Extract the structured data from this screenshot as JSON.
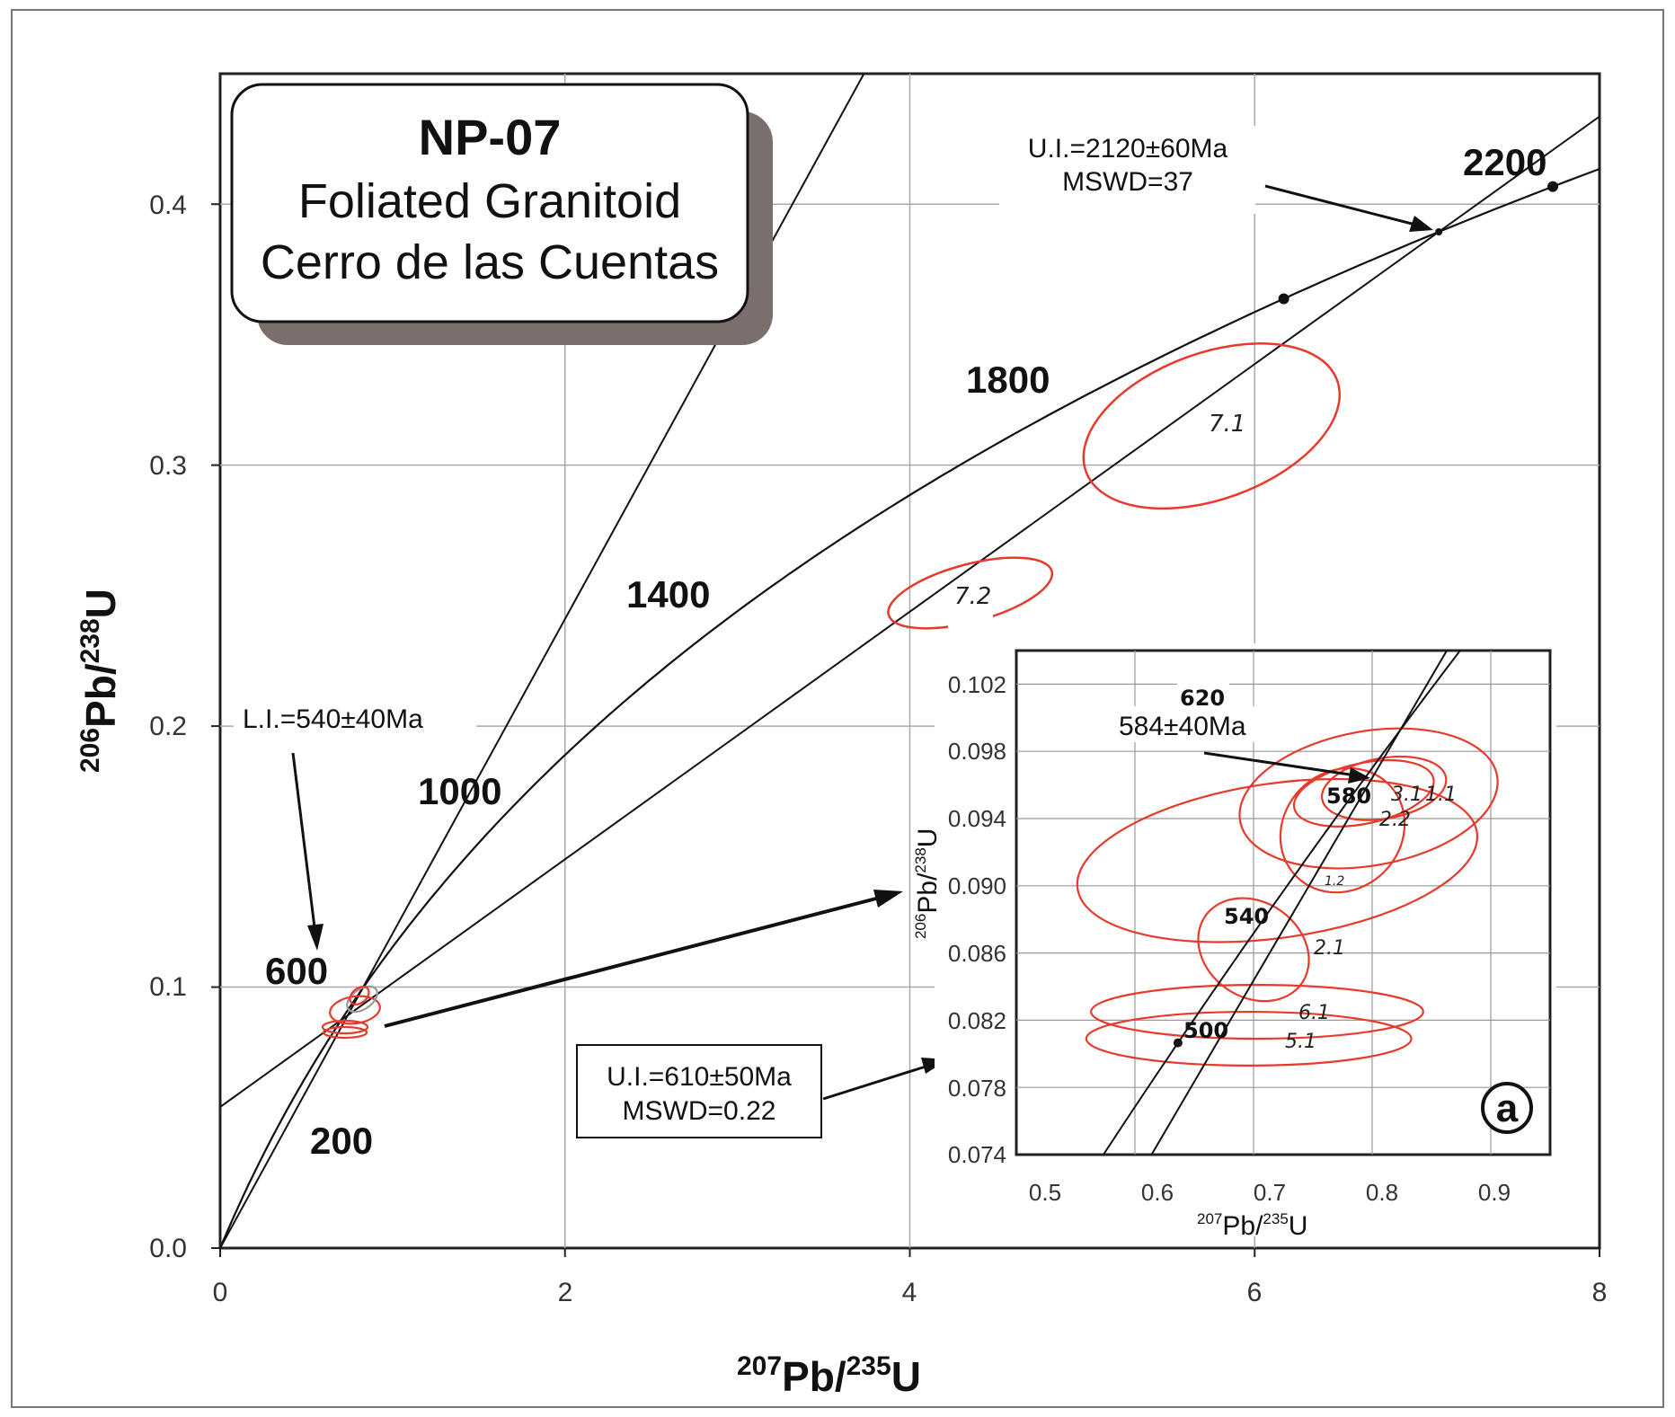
{
  "chart_data": [
    {
      "type": "scatter",
      "subtype": "U-Pb concordia diagram",
      "title": {
        "sample": "NP-07",
        "rock": "Foliated Granitoid",
        "location": "Cerro de las Cuentas"
      },
      "xlabel": {
        "pre1": "207",
        "main1": "Pb/",
        "pre2": "235",
        "main2": "U"
      },
      "ylabel": {
        "pre1": "206",
        "main1": "Pb/",
        "pre2": "238",
        "main2": "U"
      },
      "xlim": [
        0,
        8
      ],
      "ylim": [
        0,
        0.45
      ],
      "xticks": [
        "0",
        "2",
        "4",
        "6",
        "8"
      ],
      "yticks": [
        "0.0",
        "0.1",
        "0.2",
        "0.3",
        "0.4"
      ],
      "grid": true,
      "concordia_age_labels": [
        "200",
        "600",
        "1000",
        "1400",
        "1800",
        "2200"
      ],
      "concordia_markers_Ma": [
        2000,
        2200
      ],
      "discordia": {
        "lower_intercept_Ma": 540,
        "upper_intercept_Ma": 2120
      },
      "annotations": {
        "upper_intercept": [
          "U.I.=2120±60Ma",
          "MSWD=37"
        ],
        "lower_intercept": [
          "L.I.=540±40Ma"
        ],
        "inset_intercept": [
          "U.I.=610±50Ma",
          "MSWD=0.22"
        ]
      },
      "ellipses": [
        {
          "label": "7.1",
          "x": 5.75,
          "y": 0.315,
          "rx": 1.55,
          "ry": 0.028,
          "rotation_deg": -20
        },
        {
          "label": "7.2",
          "x": 4.35,
          "y": 0.251,
          "rx": 0.98,
          "ry": 0.011,
          "rotation_deg": -15
        }
      ],
      "colors": {
        "ellipse": "#e8392b",
        "curve": "#111111",
        "grid": "#aaaaaa",
        "shadow": "#7a6f6c"
      }
    },
    {
      "type": "scatter",
      "subtype": "inset concordia diagram",
      "panel_label": "a",
      "xlabel": {
        "pre1": "207",
        "main1": "Pb/",
        "pre2": "235",
        "main2": "U"
      },
      "ylabel": {
        "pre1": "206",
        "main1": "Pb/",
        "pre2": "238",
        "main2": "U"
      },
      "xlim": [
        0.5,
        0.95
      ],
      "ylim": [
        0.074,
        0.104
      ],
      "xticks": [
        "0.5",
        "0.6",
        "0.7",
        "0.8",
        "0.9"
      ],
      "yticks": [
        "0.074",
        "0.078",
        "0.082",
        "0.086",
        "0.090",
        "0.094",
        "0.098",
        "0.102"
      ],
      "grid": true,
      "concordia_age_labels": [
        "500",
        "540",
        "580",
        "620"
      ],
      "annotation": "584±40Ma",
      "ellipses": [
        {
          "label": "3.1",
          "x": 0.793,
          "y": 0.0955,
          "rx": 0.06,
          "ry": 0.0018,
          "rotation_deg": -12
        },
        {
          "label": "1.1",
          "x": 0.81,
          "y": 0.0958,
          "rx": 0.053,
          "ry": 0.0018,
          "rotation_deg": -10
        },
        {
          "label": "2.2",
          "x": 0.797,
          "y": 0.0952,
          "rx": 0.11,
          "ry": 0.004,
          "rotation_deg": -10
        },
        {
          "label": "1.2",
          "x": 0.775,
          "y": 0.0933,
          "rx": 0.055,
          "ry": 0.0035,
          "rotation_deg": -45
        },
        {
          "label": "",
          "x": 0.72,
          "y": 0.0915,
          "rx": 0.17,
          "ry": 0.0046,
          "rotation_deg": -8
        },
        {
          "label": "2.1",
          "x": 0.7,
          "y": 0.0862,
          "rx": 0.04,
          "ry": 0.0035,
          "rotation_deg": -55
        },
        {
          "label": "6.1",
          "x": 0.703,
          "y": 0.0825,
          "rx": 0.14,
          "ry": 0.0016,
          "rotation_deg": 0
        },
        {
          "label": "5.1",
          "x": 0.696,
          "y": 0.0809,
          "rx": 0.137,
          "ry": 0.0016,
          "rotation_deg": 0
        }
      ],
      "colors": {
        "ellipse": "#e8392b",
        "curve": "#111111",
        "grid": "#999999"
      }
    }
  ]
}
